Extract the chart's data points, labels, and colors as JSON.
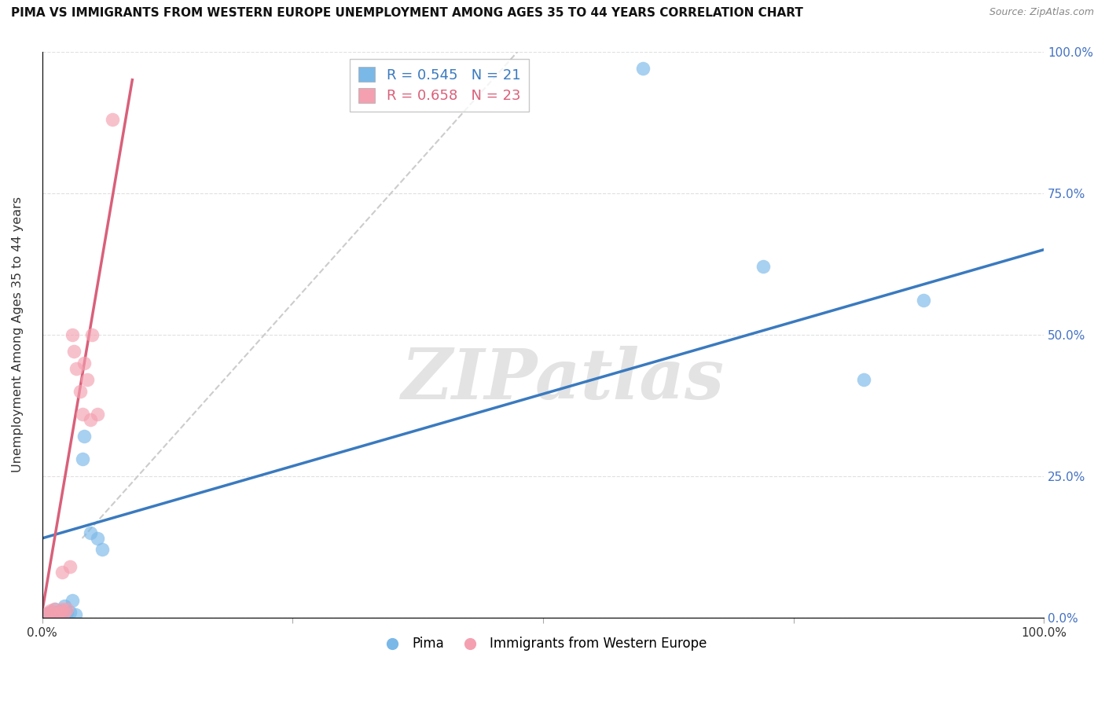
{
  "title": "PIMA VS IMMIGRANTS FROM WESTERN EUROPE UNEMPLOYMENT AMONG AGES 35 TO 44 YEARS CORRELATION CHART",
  "source_text": "Source: ZipAtlas.com",
  "ylabel": "Unemployment Among Ages 35 to 44 years",
  "xlim": [
    0.0,
    1.0
  ],
  "ylim": [
    0.0,
    1.0
  ],
  "xtick_values": [
    0.0,
    0.25,
    0.5,
    0.75,
    1.0
  ],
  "xtick_labels_show": [
    "0.0%",
    "",
    "",
    "",
    "100.0%"
  ],
  "ytick_values": [
    0.0,
    0.25,
    0.5,
    0.75,
    1.0
  ],
  "ytick_labels_right": [
    "0.0%",
    "25.0%",
    "50.0%",
    "75.0%",
    "100.0%"
  ],
  "pima_color": "#7ab8e8",
  "immigrants_color": "#f4a0b0",
  "pima_R": 0.545,
  "pima_N": 21,
  "immigrants_R": 0.658,
  "immigrants_N": 23,
  "legend_label_pima": "Pima",
  "legend_label_immigrants": "Immigrants from Western Europe",
  "watermark_text": "ZIPatlas",
  "background_color": "#ffffff",
  "pima_points_x": [
    0.005,
    0.008,
    0.01,
    0.013,
    0.015,
    0.018,
    0.02,
    0.022,
    0.025,
    0.028,
    0.03,
    0.033,
    0.04,
    0.042,
    0.048,
    0.055,
    0.06,
    0.6,
    0.72,
    0.82,
    0.88
  ],
  "pima_points_y": [
    0.005,
    0.01,
    0.008,
    0.015,
    0.01,
    0.005,
    0.012,
    0.02,
    0.008,
    0.01,
    0.03,
    0.005,
    0.28,
    0.32,
    0.15,
    0.14,
    0.12,
    0.97,
    0.62,
    0.42,
    0.56
  ],
  "immigrants_points_x": [
    0.003,
    0.006,
    0.008,
    0.01,
    0.012,
    0.015,
    0.018,
    0.02,
    0.02,
    0.022,
    0.025,
    0.028,
    0.03,
    0.032,
    0.034,
    0.038,
    0.04,
    0.042,
    0.045,
    0.048,
    0.05,
    0.055,
    0.07
  ],
  "immigrants_points_y": [
    0.005,
    0.008,
    0.012,
    0.008,
    0.015,
    0.008,
    0.01,
    0.015,
    0.08,
    0.01,
    0.015,
    0.09,
    0.5,
    0.47,
    0.44,
    0.4,
    0.36,
    0.45,
    0.42,
    0.35,
    0.5,
    0.36,
    0.88
  ],
  "blue_line_x": [
    0.0,
    1.0
  ],
  "blue_line_y": [
    0.14,
    0.65
  ],
  "pink_line_x": [
    0.0,
    0.09
  ],
  "pink_line_y": [
    0.01,
    0.95
  ],
  "dashed_line_x": [
    0.04,
    0.5
  ],
  "dashed_line_y": [
    0.14,
    1.05
  ],
  "grid_color": "#e0e0e0",
  "blue_line_color": "#3a7abf",
  "pink_line_color": "#d9607a"
}
